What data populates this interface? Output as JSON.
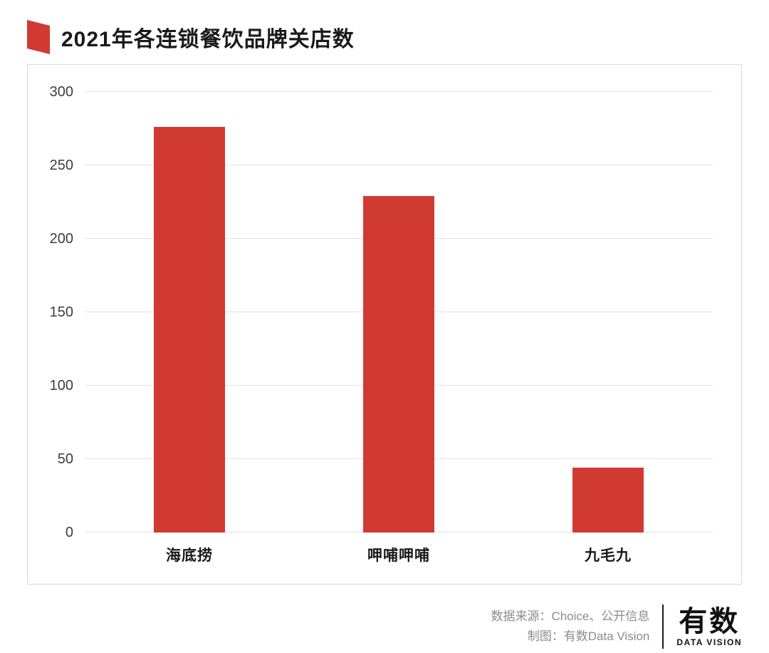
{
  "header": {
    "title": "2021年各连锁餐饮品牌关店数"
  },
  "chart_data": {
    "type": "bar",
    "title": "2021年各连锁餐饮品牌关店数",
    "categories": [
      "海底捞",
      "呷哺呷哺",
      "九毛九"
    ],
    "values": [
      276,
      229,
      44
    ],
    "xlabel": "",
    "ylabel": "",
    "ylim": [
      0,
      300
    ],
    "yticks": [
      0,
      50,
      100,
      150,
      200,
      250,
      300
    ],
    "grid": true,
    "legend": false,
    "bar_color": "#d03a31"
  },
  "footer": {
    "source_line": "数据来源：Choice、公开信息",
    "credit_line": "制图：有数Data Vision",
    "logo_cn": "有数",
    "logo_en": "DATA VISION"
  },
  "colors": {
    "accent": "#d03a31",
    "grid": "#e2e2e2",
    "text": "#1a1a1a",
    "muted": "#8c8c8c"
  }
}
